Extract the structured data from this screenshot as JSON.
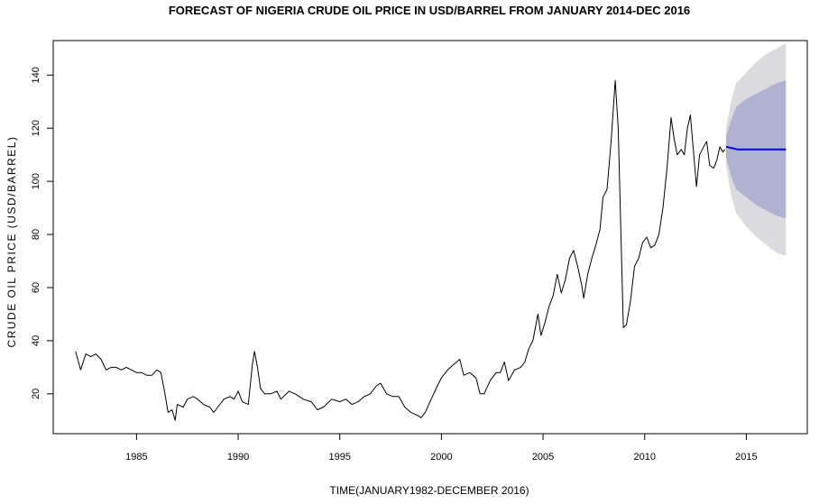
{
  "chart_data": {
    "type": "line",
    "title": "FORECAST OF NIGERIA CRUDE OIL PRICE IN USD/BARREL FROM JANUARY 2014-DEC 2016",
    "xlabel": "TIME(JANUARY1982-DECEMBER 2016)",
    "ylabel": "CRUDE OIL PRICE (USD/BARREL)",
    "xlim": [
      1980.9,
      2018.0
    ],
    "ylim": [
      5,
      153
    ],
    "x_ticks": [
      1985,
      1990,
      1995,
      2000,
      2005,
      2010,
      2015
    ],
    "x_tick_labels": [
      "1985",
      "1990",
      "1995",
      "2000",
      "2005",
      "2010",
      "2015"
    ],
    "y_ticks": [
      20,
      40,
      60,
      80,
      100,
      120,
      140
    ],
    "y_tick_labels": [
      "20",
      "40",
      "60",
      "80",
      "100",
      "120",
      "140"
    ],
    "grid": false,
    "series": [
      {
        "color": "#000000",
        "points": [
          [
            1982.0,
            36
          ],
          [
            1982.25,
            29
          ],
          [
            1982.5,
            35
          ],
          [
            1982.75,
            34
          ],
          [
            1983.0,
            35
          ],
          [
            1983.25,
            33
          ],
          [
            1983.5,
            29
          ],
          [
            1983.75,
            30
          ],
          [
            1984.0,
            30
          ],
          [
            1984.25,
            29
          ],
          [
            1984.5,
            30
          ],
          [
            1984.75,
            29
          ],
          [
            1985.0,
            28
          ],
          [
            1985.25,
            28
          ],
          [
            1985.5,
            27
          ],
          [
            1985.75,
            27
          ],
          [
            1986.0,
            29
          ],
          [
            1986.2,
            28
          ],
          [
            1986.4,
            20
          ],
          [
            1986.55,
            13
          ],
          [
            1986.75,
            14
          ],
          [
            1986.9,
            10
          ],
          [
            1987.0,
            16
          ],
          [
            1987.3,
            15
          ],
          [
            1987.5,
            18
          ],
          [
            1987.8,
            19
          ],
          [
            1988.0,
            18
          ],
          [
            1988.3,
            16
          ],
          [
            1988.6,
            15
          ],
          [
            1988.8,
            13
          ],
          [
            1989.0,
            15
          ],
          [
            1989.3,
            18
          ],
          [
            1989.6,
            19
          ],
          [
            1989.8,
            18
          ],
          [
            1990.0,
            21
          ],
          [
            1990.2,
            17
          ],
          [
            1990.5,
            16
          ],
          [
            1990.7,
            31
          ],
          [
            1990.8,
            36
          ],
          [
            1990.95,
            30
          ],
          [
            1991.1,
            22
          ],
          [
            1991.3,
            20
          ],
          [
            1991.6,
            20
          ],
          [
            1991.9,
            21
          ],
          [
            1992.1,
            18
          ],
          [
            1992.5,
            21
          ],
          [
            1992.8,
            20
          ],
          [
            1993.2,
            18
          ],
          [
            1993.6,
            17
          ],
          [
            1993.9,
            14
          ],
          [
            1994.2,
            15
          ],
          [
            1994.6,
            18
          ],
          [
            1995.0,
            17
          ],
          [
            1995.3,
            18
          ],
          [
            1995.6,
            16
          ],
          [
            1995.9,
            17
          ],
          [
            1996.2,
            19
          ],
          [
            1996.5,
            20
          ],
          [
            1996.8,
            23
          ],
          [
            1997.0,
            24
          ],
          [
            1997.3,
            20
          ],
          [
            1997.6,
            19
          ],
          [
            1997.9,
            19
          ],
          [
            1998.2,
            15
          ],
          [
            1998.5,
            13
          ],
          [
            1998.8,
            12
          ],
          [
            1999.0,
            11
          ],
          [
            1999.2,
            13
          ],
          [
            1999.5,
            18
          ],
          [
            1999.8,
            23
          ],
          [
            2000.0,
            26
          ],
          [
            2000.3,
            29
          ],
          [
            2000.6,
            31
          ],
          [
            2000.9,
            33
          ],
          [
            2001.1,
            27
          ],
          [
            2001.4,
            28
          ],
          [
            2001.7,
            26
          ],
          [
            2001.9,
            20
          ],
          [
            2002.1,
            20
          ],
          [
            2002.4,
            25
          ],
          [
            2002.7,
            28
          ],
          [
            2002.9,
            28
          ],
          [
            2003.1,
            32
          ],
          [
            2003.3,
            25
          ],
          [
            2003.6,
            29
          ],
          [
            2003.9,
            30
          ],
          [
            2004.1,
            32
          ],
          [
            2004.3,
            37
          ],
          [
            2004.5,
            40
          ],
          [
            2004.75,
            50
          ],
          [
            2004.9,
            42
          ],
          [
            2005.1,
            47
          ],
          [
            2005.3,
            53
          ],
          [
            2005.5,
            57
          ],
          [
            2005.7,
            65
          ],
          [
            2005.9,
            58
          ],
          [
            2006.1,
            63
          ],
          [
            2006.3,
            71
          ],
          [
            2006.5,
            74
          ],
          [
            2006.7,
            68
          ],
          [
            2006.9,
            61
          ],
          [
            2007.0,
            56
          ],
          [
            2007.2,
            65
          ],
          [
            2007.4,
            71
          ],
          [
            2007.6,
            76
          ],
          [
            2007.8,
            82
          ],
          [
            2007.95,
            94
          ],
          [
            2008.15,
            97
          ],
          [
            2008.35,
            115
          ],
          [
            2008.55,
            138
          ],
          [
            2008.7,
            120
          ],
          [
            2008.85,
            75
          ],
          [
            2008.95,
            45
          ],
          [
            2009.1,
            46
          ],
          [
            2009.3,
            55
          ],
          [
            2009.5,
            68
          ],
          [
            2009.7,
            71
          ],
          [
            2009.9,
            77
          ],
          [
            2010.1,
            79
          ],
          [
            2010.3,
            75
          ],
          [
            2010.5,
            76
          ],
          [
            2010.7,
            80
          ],
          [
            2010.9,
            90
          ],
          [
            2011.1,
            105
          ],
          [
            2011.3,
            124
          ],
          [
            2011.45,
            116
          ],
          [
            2011.6,
            110
          ],
          [
            2011.8,
            112
          ],
          [
            2011.95,
            110
          ],
          [
            2012.1,
            120
          ],
          [
            2012.25,
            125
          ],
          [
            2012.45,
            107
          ],
          [
            2012.55,
            98
          ],
          [
            2012.7,
            110
          ],
          [
            2012.9,
            113
          ],
          [
            2013.05,
            115
          ],
          [
            2013.2,
            106
          ],
          [
            2013.4,
            105
          ],
          [
            2013.55,
            108
          ],
          [
            2013.7,
            113
          ],
          [
            2013.85,
            111
          ],
          [
            2013.95,
            112
          ]
        ]
      },
      {
        "color": "#0000ff",
        "points": [
          [
            2014.0,
            113
          ],
          [
            2014.3,
            112.5
          ],
          [
            2014.6,
            112
          ],
          [
            2015.0,
            112
          ],
          [
            2016.0,
            112
          ],
          [
            2016.95,
            112
          ]
        ]
      }
    ],
    "bands": [
      {
        "color": "#dbdbdf",
        "x": [
          2014.0,
          2014.25,
          2014.5,
          2015.0,
          2015.5,
          2016.0,
          2016.5,
          2016.95
        ],
        "lower": [
          106,
          95,
          88,
          83,
          79,
          76,
          73,
          72
        ],
        "upper": [
          120,
          130,
          137,
          141,
          145,
          148,
          150,
          152
        ]
      },
      {
        "color": "#afb2d1",
        "x": [
          2014.0,
          2014.25,
          2014.5,
          2015.0,
          2015.5,
          2016.0,
          2016.5,
          2016.95
        ],
        "lower": [
          109,
          102,
          97,
          94,
          91,
          89,
          87,
          86
        ],
        "upper": [
          117,
          123,
          128,
          131,
          133,
          135,
          137,
          138
        ]
      }
    ]
  }
}
